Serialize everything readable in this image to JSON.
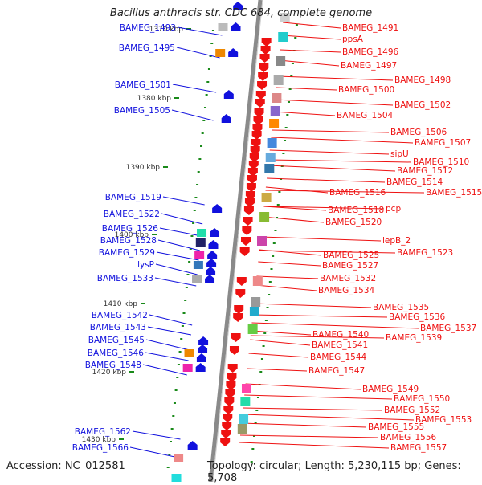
{
  "title": "Bacillus anthracis str. CDC 684, complete genome",
  "footer": {
    "accession": "Accession: NC_012581",
    "topology": "Topology: circular; Length: 5,230,115 bp; Genes: 5,708"
  },
  "colors": {
    "backbone": "#8a8a8a",
    "forward_strand": "#ee1111",
    "reverse_strand": "#1111dd",
    "tick": "#1a8a1a"
  },
  "kbp_ticks": [
    "1370 kbp",
    "1380 kbp",
    "1390 kbp",
    "1400 kbp",
    "1410 kbp",
    "1420 kbp",
    "1430 kbp"
  ],
  "left_labels": [
    "BAMEG_1493",
    "BAMEG_1495",
    "BAMEG_1501",
    "BAMEG_1505",
    "BAMEG_1519",
    "BAMEG_1522",
    "BAMEG_1526",
    "BAMEG_1528",
    "BAMEG_1529",
    "lysP",
    "BAMEG_1533",
    "BAMEG_1542",
    "BAMEG_1543",
    "BAMEG_1545",
    "BAMEG_1546",
    "BAMEG_1548",
    "BAMEG_1562",
    "BAMEG_1566"
  ],
  "right_labels": [
    "BAMEG_1491",
    "ppsA",
    "BAMEG_1496",
    "BAMEG_1497",
    "BAMEG_1498",
    "BAMEG_1500",
    "BAMEG_1502",
    "BAMEG_1504",
    "BAMEG_1506",
    "BAMEG_1507",
    "sipU",
    "BAMEG_1510",
    "BAMEG_1512",
    "BAMEG_1514",
    "BAMEG_1515",
    "BAMEG_1516",
    "BAMEG_1518",
    "pcp",
    "BAMEG_1520",
    "lepB_2",
    "BAMEG_1523",
    "BAMEG_1525",
    "BAMEG_1527",
    "BAMEG_1532",
    "BAMEG_1534",
    "BAMEG_1535",
    "BAMEG_1536",
    "BAMEG_1537",
    "BAMEG_1540",
    "BAMEG_1539",
    "BAMEG_1541",
    "BAMEG_1544",
    "BAMEG_1547",
    "BAMEG_1549",
    "BAMEG_1550",
    "BAMEG_1552",
    "BAMEG_1553",
    "BAMEG_1555",
    "BAMEG_1556",
    "BAMEG_1557"
  ]
}
